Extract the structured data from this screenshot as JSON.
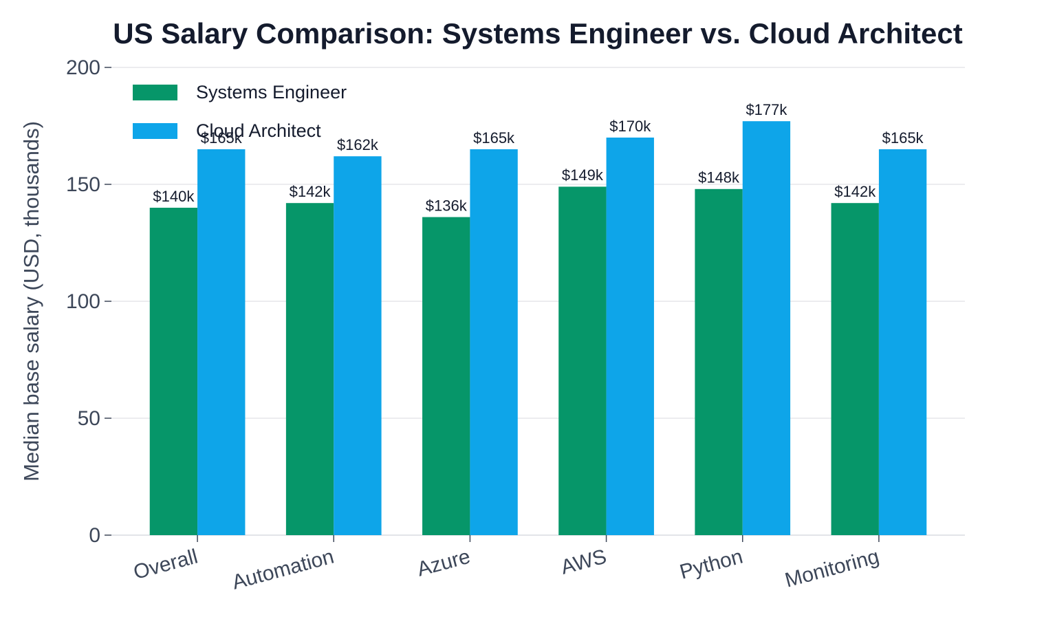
{
  "chart_data": {
    "type": "bar",
    "title": "US Salary Comparison: Systems Engineer vs. Cloud Architect",
    "y_label": "Median base salary (USD, thousands)",
    "categories": [
      "Overall",
      "Automation",
      "Azure",
      "AWS",
      "Python",
      "Monitoring"
    ],
    "series": [
      {
        "name": "Systems Engineer",
        "color": "#069669",
        "values": [
          140,
          142,
          136,
          149,
          148,
          142
        ],
        "value_labels": [
          "$140k",
          "$142k",
          "$136k",
          "$149k",
          "$148k",
          "$142k"
        ]
      },
      {
        "name": "Cloud Architect",
        "color": "#0ea5e9",
        "values": [
          165,
          162,
          165,
          170,
          177,
          165
        ],
        "value_labels": [
          "$165k",
          "$162k",
          "$165k",
          "$170k",
          "$177k",
          "$165k"
        ]
      }
    ],
    "ylim": [
      0,
      200
    ],
    "yticks": [
      0,
      50,
      100,
      150,
      200
    ],
    "grid": true,
    "legend": "upper-left"
  }
}
